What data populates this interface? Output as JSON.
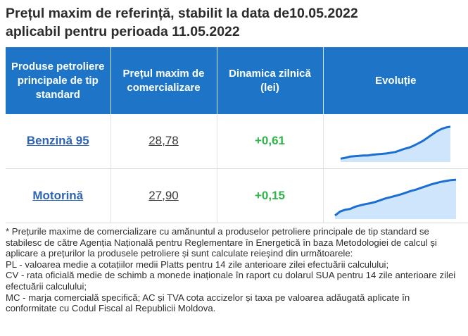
{
  "title": {
    "line1": "Prețul maxim de referință, stabilit la data de10.05.2022",
    "line2": "aplicabil pentru perioada 11.05.2022"
  },
  "table": {
    "headers": {
      "product": "Produse petroliere principale de tip standard",
      "price": "Prețul maxim de comercializare",
      "change": "Dinamica zilnică (lei)",
      "trend": "Evoluție"
    },
    "rows": [
      {
        "product": "Benzină 95",
        "price": "28,78",
        "change": "+0,61",
        "trend": [
          0.05,
          0.07,
          0.1,
          0.11,
          0.12,
          0.13,
          0.13,
          0.15,
          0.16,
          0.17,
          0.18,
          0.2,
          0.22,
          0.26,
          0.3,
          0.33,
          0.38,
          0.44,
          0.5,
          0.58,
          0.66,
          0.74,
          0.8,
          0.84,
          0.86
        ]
      },
      {
        "product": "Motorină",
        "price": "27,90",
        "change": "+0,15",
        "trend": [
          0.05,
          0.14,
          0.18,
          0.2,
          0.25,
          0.28,
          0.31,
          0.33,
          0.36,
          0.4,
          0.44,
          0.47,
          0.5,
          0.53,
          0.57,
          0.61,
          0.64,
          0.68,
          0.72,
          0.76,
          0.79,
          0.82,
          0.84,
          0.86,
          0.87
        ]
      }
    ]
  },
  "colors": {
    "header_bg": "#1e74c6",
    "link": "#2d64b4",
    "positive": "#2fb64b",
    "spark_line": "#1b6fd1",
    "spark_fill": "#cfe5fb"
  },
  "notes": [
    "* Prețurile maxime de comercializare cu amănuntul a produselor petroliere principale de tip standard se stabilesc de către Agenția Națională pentru Reglementare în Energetică în baza Metodologiei de calcul și aplicare a prețurilor la produsele petroliere și sunt calculate reieșind din următoarele:",
    "PL - valoarea medie a cotațiilor medii Platts pentru 14 zile anterioare zilei efectuării calculului;",
    "CV - rata oficială medie de schimb a monede inaționale în raport cu dolarul SUA pentru 14 zile anterioare zilei efectuării calculului;",
    "MC - marja comercială specifică; AC și TVA cota accizelor și taxa pe valoarea adăugată aplicate în conformitate cu Codul Fiscal al Republicii Moldova."
  ]
}
